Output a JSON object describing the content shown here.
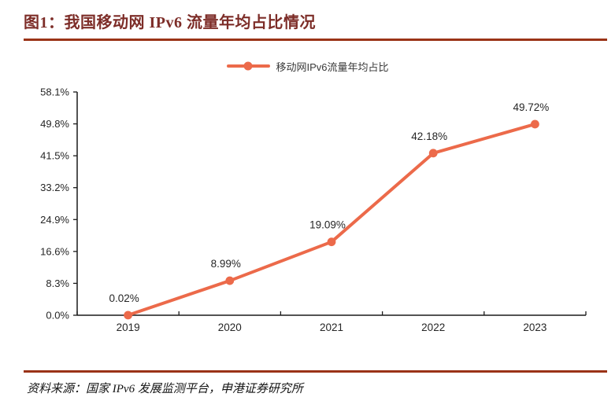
{
  "page": {
    "title": "图1：我国移动网 IPv6 流量年均占比情况",
    "source_note": "资料来源：国家 IPv6 发展监测平台，申港证券研究所"
  },
  "colors": {
    "title": "#7D2D28",
    "rule": "#9A3317",
    "series": "#EC6A4A",
    "axis": "#1A1A1A",
    "label": "#262626"
  },
  "legend": {
    "label": "移动网IPv6流量年均占比"
  },
  "chart_data": {
    "type": "line",
    "title": "我国移动网 IPv6 流量年均占比情况",
    "categories": [
      "2019",
      "2020",
      "2021",
      "2022",
      "2023"
    ],
    "series": [
      {
        "name": "移动网IPv6流量年均占比",
        "values": [
          0.02,
          8.99,
          19.09,
          42.18,
          49.72
        ],
        "point_labels": [
          "0.02%",
          "8.99%",
          "19.09%",
          "42.18%",
          "49.72%"
        ],
        "color": "#EC6A4A"
      }
    ],
    "xlabel": "",
    "ylabel": "",
    "ylim": [
      0,
      58.1
    ],
    "yticks": [
      {
        "value": 0.0,
        "label": "0.0%"
      },
      {
        "value": 8.3,
        "label": "8.3%"
      },
      {
        "value": 16.6,
        "label": "16.6%"
      },
      {
        "value": 24.9,
        "label": "24.9%"
      },
      {
        "value": 33.2,
        "label": "33.2%"
      },
      {
        "value": 41.5,
        "label": "41.5%"
      },
      {
        "value": 49.8,
        "label": "49.8%"
      },
      {
        "value": 58.1,
        "label": "58.1%"
      }
    ],
    "grid": false,
    "legend_position": "top-center"
  }
}
